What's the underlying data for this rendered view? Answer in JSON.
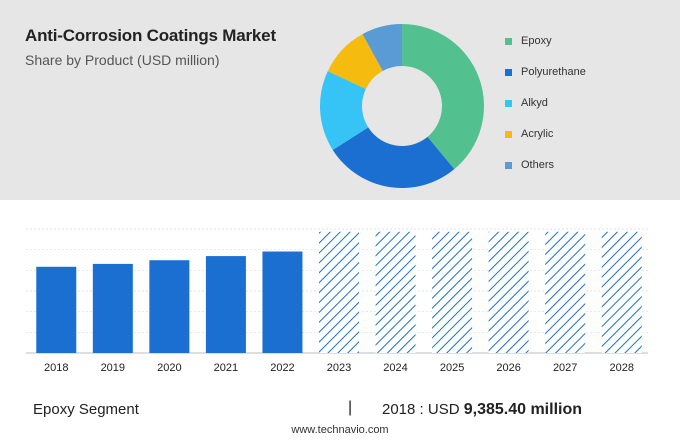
{
  "header": {
    "title": "Anti-Corrosion Coatings Market",
    "subtitle": "Share by Product (USD million)"
  },
  "chart_data": [
    {
      "type": "pie",
      "style": "donut",
      "categories": [
        "Epoxy",
        "Polyurethane",
        "Alkyd",
        "Acrylic",
        "Others"
      ],
      "values": [
        39,
        27,
        16,
        10,
        8
      ],
      "colors": [
        "#52c08f",
        "#1a6fd1",
        "#36c3f5",
        "#f5bc0f",
        "#5b9bd5"
      ],
      "legend": "right"
    },
    {
      "type": "bar",
      "categories": [
        "2018",
        "2019",
        "2020",
        "2021",
        "2022",
        "2023",
        "2024",
        "2025",
        "2026",
        "2027",
        "2028"
      ],
      "values": [
        9385.4,
        9700,
        10100,
        10550,
        11050,
        13200,
        13200,
        13200,
        13200,
        13200,
        13200
      ],
      "forecast_from": "2023",
      "colors": {
        "actual": "#1a6fd1",
        "forecast": "#1a6fd1"
      },
      "ylim": [
        0,
        13500
      ],
      "grid": true,
      "highlight": {
        "label": "Epoxy Segment",
        "year": "2018",
        "prefix": "USD",
        "value": "9,385.40 million"
      }
    }
  ],
  "footer": {
    "segment": "Epoxy Segment",
    "separator": "|",
    "year_prefix": "2018 : USD",
    "value": "9,385.40 million",
    "source": "www.technavio.com"
  }
}
